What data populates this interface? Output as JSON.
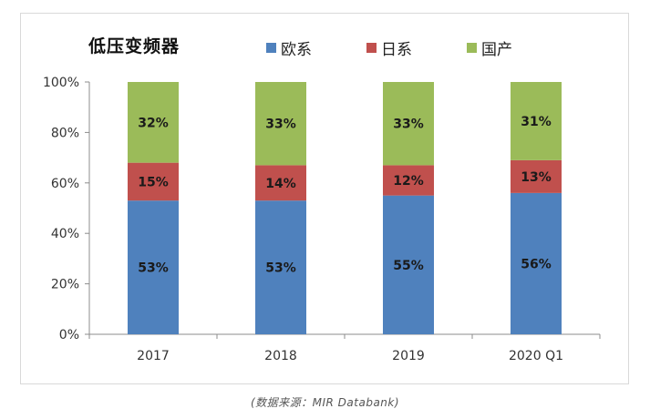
{
  "chart_data": {
    "type": "bar",
    "stacked": true,
    "title": "低压变频器",
    "categories": [
      "2017",
      "2018",
      "2019",
      "2020 Q1"
    ],
    "series": [
      {
        "name": "欧系",
        "color": "#4f81bd",
        "values": [
          53,
          53,
          55,
          56
        ],
        "labels": [
          "53%",
          "53%",
          "55%",
          "56%"
        ]
      },
      {
        "name": "日系",
        "color": "#c0504d",
        "values": [
          15,
          14,
          12,
          13
        ],
        "labels": [
          "15%",
          "14%",
          "12%",
          "13%"
        ]
      },
      {
        "name": "国产",
        "color": "#9bbb59",
        "values": [
          32,
          33,
          33,
          31
        ],
        "labels": [
          "32%",
          "33%",
          "33%",
          "31%"
        ]
      }
    ],
    "yticks": [
      "0%",
      "20%",
      "40%",
      "60%",
      "80%",
      "100%"
    ],
    "ylim": [
      0,
      100
    ],
    "grid": false,
    "legend_position": "top"
  },
  "source": "(数据来源：MIR Databank)"
}
